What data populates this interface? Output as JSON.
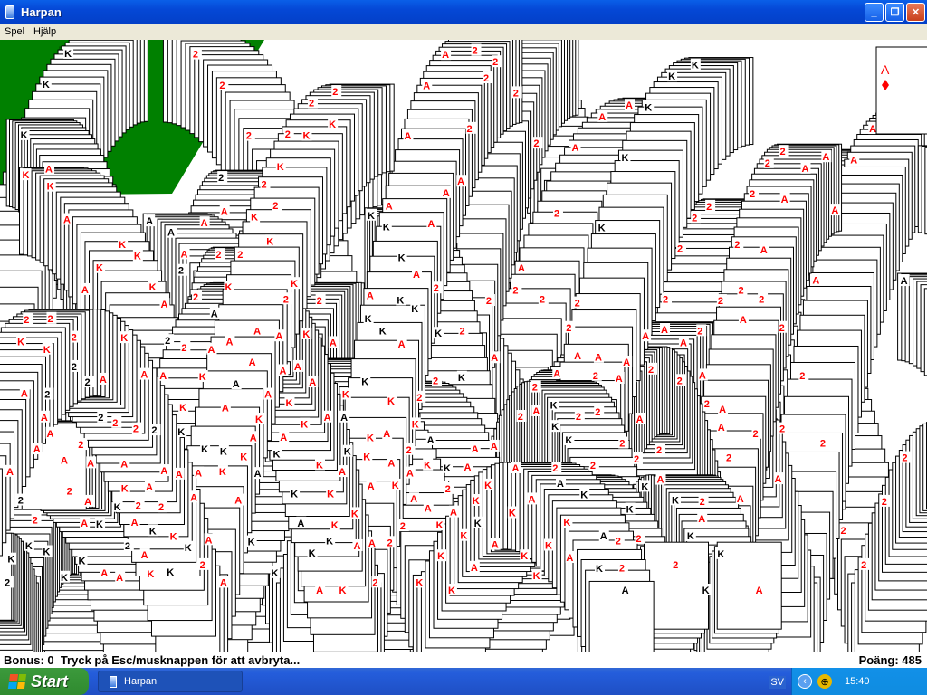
{
  "window": {
    "title": "Harpan",
    "minimize_icon": "minimize-icon",
    "maximize_icon": "restore-icon",
    "close_icon": "close-icon"
  },
  "menu": {
    "items": [
      {
        "label": "Spel"
      },
      {
        "label": "Hjälp"
      }
    ]
  },
  "board": {
    "felt_color": "#008000",
    "deck_placeholder_icon": "green-circle-icon",
    "ring_color": "#00ff00",
    "foundation_card": {
      "rank": "A",
      "suit": "diamond",
      "color": "#ff0000"
    },
    "trail_ranks": [
      "A",
      "2",
      "K"
    ]
  },
  "status": {
    "left": "Bonus: 0  Tryck på Esc/musknappen för att avbryta...",
    "right": "Poäng: 485"
  },
  "taskbar": {
    "start_label": "Start",
    "tasks": [
      {
        "label": "Harpan"
      }
    ],
    "language": "SV",
    "clock": "15:40"
  }
}
